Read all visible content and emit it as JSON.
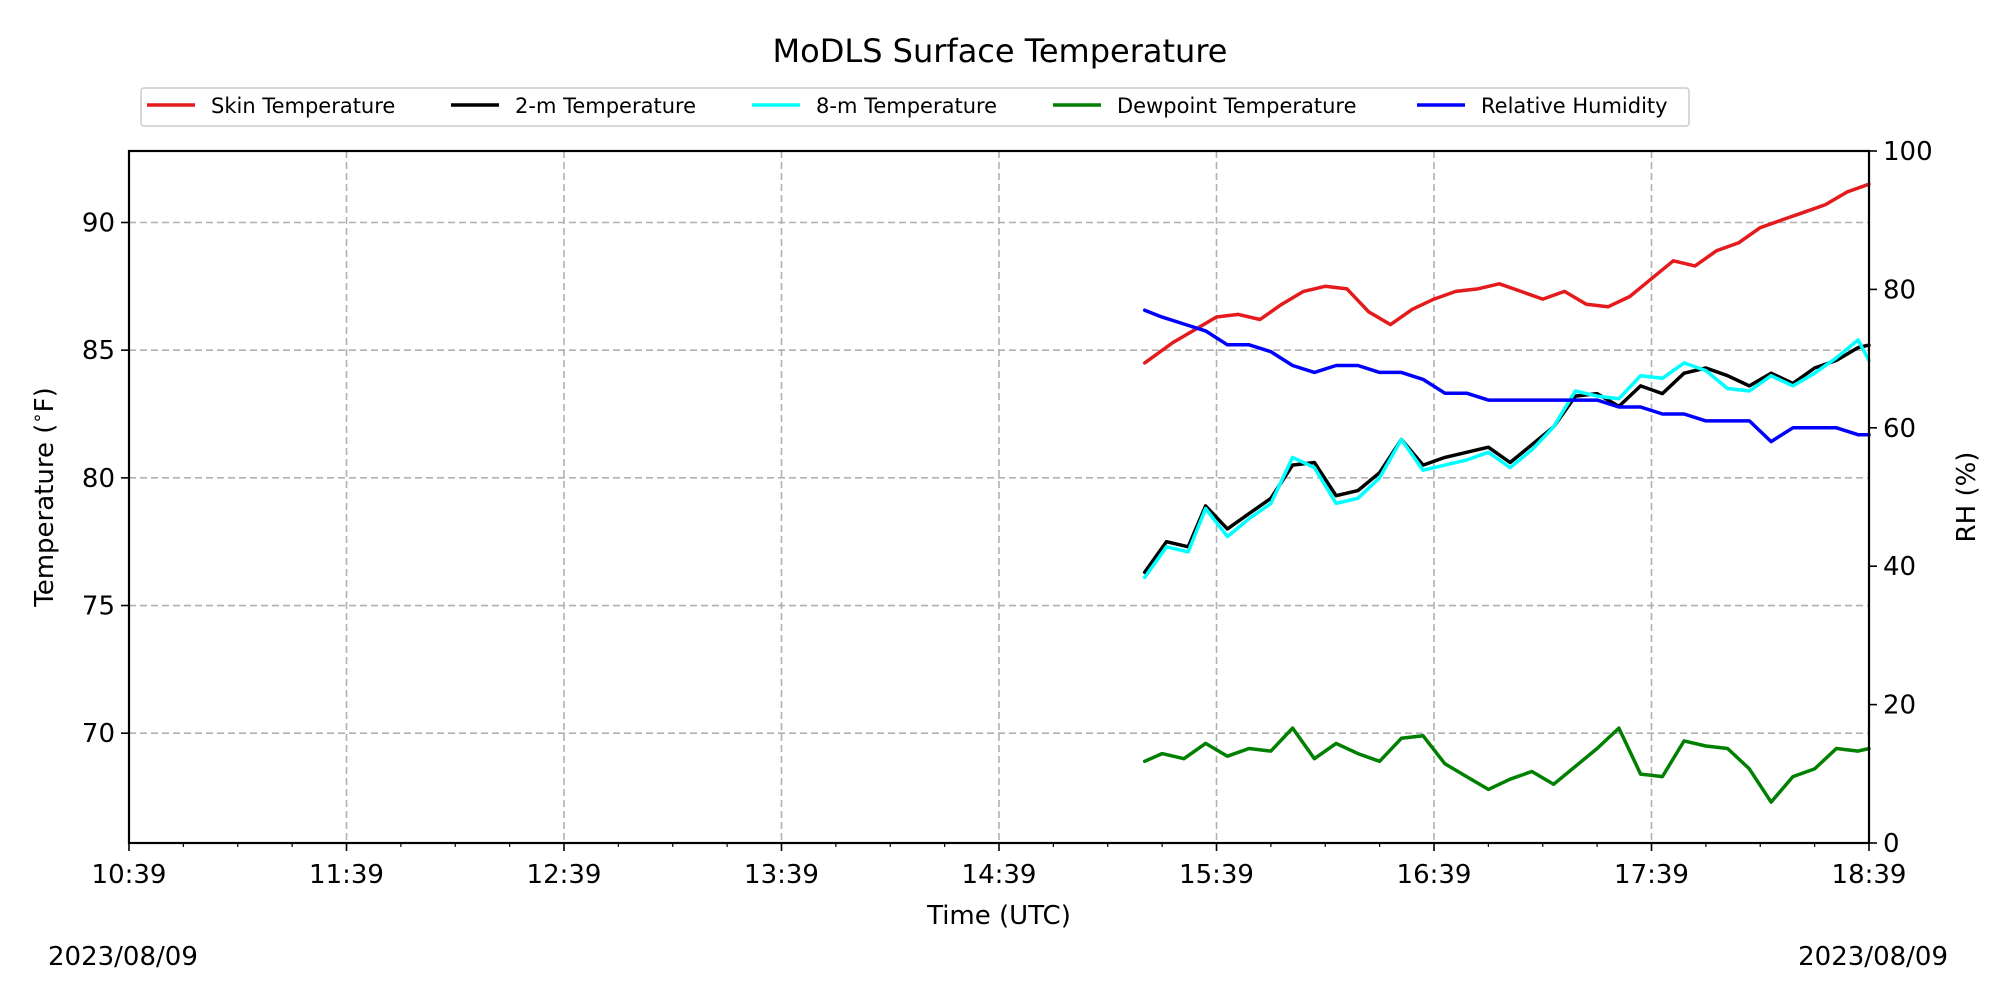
{
  "chart_data": {
    "type": "line",
    "title": "MoDLS Surface Temperature",
    "xlabel": "Time (UTC)",
    "ylabel": "Temperature ($^\\circ$F)",
    "y2label": "RH (%)",
    "x_unit": "hours UTC",
    "xlim": [
      10.65,
      18.65
    ],
    "ylim": [
      65.7,
      92.8
    ],
    "y2lim": [
      0,
      100
    ],
    "x_ticks": [
      "10:39",
      "11:39",
      "12:39",
      "13:39",
      "14:39",
      "15:39",
      "16:39",
      "17:39",
      "18:39"
    ],
    "y_ticks": [
      "70",
      "75",
      "80",
      "85",
      "90"
    ],
    "y2_ticks": [
      "0",
      "20",
      "40",
      "60",
      "80",
      "100"
    ],
    "grid": true,
    "legend_position": "top",
    "date_left": "2023/08/09",
    "date_right": "2023/08/09",
    "series": [
      {
        "name": "Skin Temperature",
        "axis": "left",
        "color": "#e41a1c",
        "x": [
          15.32,
          15.45,
          15.55,
          15.65,
          15.75,
          15.85,
          15.95,
          16.05,
          16.15,
          16.25,
          16.35,
          16.45,
          16.55,
          16.65,
          16.75,
          16.85,
          16.95,
          17.05,
          17.15,
          17.25,
          17.35,
          17.45,
          17.55,
          17.65,
          17.75,
          17.85,
          17.95,
          18.05,
          18.15,
          18.25,
          18.35,
          18.45,
          18.55,
          18.65
        ],
        "y": [
          84.5,
          85.3,
          85.8,
          86.3,
          86.4,
          86.2,
          86.8,
          87.3,
          87.5,
          87.4,
          86.5,
          86.0,
          86.6,
          87.0,
          87.3,
          87.4,
          87.6,
          87.3,
          87.0,
          87.3,
          86.8,
          86.7,
          87.1,
          87.8,
          88.5,
          88.3,
          88.9,
          89.2,
          89.8,
          90.1,
          90.4,
          90.7,
          91.2,
          91.5
        ]
      },
      {
        "name": "2-m Temperature",
        "axis": "left",
        "color": "#000000",
        "x": [
          15.32,
          15.42,
          15.52,
          15.6,
          15.7,
          15.8,
          15.9,
          16.0,
          16.1,
          16.2,
          16.3,
          16.4,
          16.5,
          16.6,
          16.7,
          16.8,
          16.9,
          17.0,
          17.1,
          17.2,
          17.3,
          17.4,
          17.5,
          17.6,
          17.7,
          17.8,
          17.9,
          18.0,
          18.1,
          18.2,
          18.3,
          18.4,
          18.5,
          18.6,
          18.65
        ],
        "y": [
          76.3,
          77.5,
          77.3,
          78.9,
          78.0,
          78.6,
          79.2,
          80.5,
          80.6,
          79.3,
          79.5,
          80.2,
          81.5,
          80.5,
          80.8,
          81.0,
          81.2,
          80.6,
          81.3,
          82.0,
          83.2,
          83.3,
          82.8,
          83.6,
          83.3,
          84.1,
          84.3,
          84.0,
          83.6,
          84.1,
          83.7,
          84.3,
          84.6,
          85.1,
          85.2
        ]
      },
      {
        "name": "8-m Temperature",
        "axis": "left",
        "color": "#00ffff",
        "x": [
          15.32,
          15.42,
          15.52,
          15.6,
          15.7,
          15.8,
          15.9,
          16.0,
          16.1,
          16.2,
          16.3,
          16.4,
          16.5,
          16.6,
          16.7,
          16.8,
          16.9,
          17.0,
          17.1,
          17.2,
          17.3,
          17.4,
          17.5,
          17.6,
          17.7,
          17.8,
          17.9,
          18.0,
          18.1,
          18.2,
          18.3,
          18.4,
          18.5,
          18.6,
          18.65
        ],
        "y": [
          76.1,
          77.3,
          77.1,
          78.8,
          77.7,
          78.4,
          79.0,
          80.8,
          80.4,
          79.0,
          79.2,
          80.0,
          81.5,
          80.3,
          80.5,
          80.7,
          81.0,
          80.4,
          81.1,
          82.0,
          83.4,
          83.2,
          83.1,
          84.0,
          83.9,
          84.5,
          84.2,
          83.5,
          83.4,
          84.0,
          83.6,
          84.1,
          84.7,
          85.4,
          84.6
        ]
      },
      {
        "name": "Dewpoint Temperature",
        "axis": "left",
        "color": "#008000",
        "x": [
          15.32,
          15.4,
          15.5,
          15.6,
          15.7,
          15.8,
          15.9,
          16.0,
          16.1,
          16.2,
          16.3,
          16.4,
          16.5,
          16.6,
          16.7,
          16.8,
          16.9,
          17.0,
          17.1,
          17.2,
          17.3,
          17.4,
          17.5,
          17.6,
          17.7,
          17.8,
          17.9,
          18.0,
          18.1,
          18.2,
          18.3,
          18.4,
          18.5,
          18.6,
          18.65
        ],
        "y": [
          68.9,
          69.2,
          69.0,
          69.6,
          69.1,
          69.4,
          69.3,
          70.2,
          69.0,
          69.6,
          69.2,
          68.9,
          69.8,
          69.9,
          68.8,
          68.3,
          67.8,
          68.2,
          68.5,
          68.0,
          68.7,
          69.4,
          70.2,
          68.4,
          68.3,
          69.7,
          69.5,
          69.4,
          68.6,
          67.3,
          68.3,
          68.6,
          69.4,
          69.3,
          69.4
        ]
      },
      {
        "name": "Relative Humidity",
        "axis": "right",
        "color": "#0000ff",
        "x": [
          15.32,
          15.4,
          15.5,
          15.6,
          15.7,
          15.8,
          15.9,
          16.0,
          16.1,
          16.2,
          16.3,
          16.4,
          16.5,
          16.6,
          16.7,
          16.8,
          16.9,
          17.0,
          17.1,
          17.2,
          17.3,
          17.4,
          17.5,
          17.6,
          17.7,
          17.8,
          17.9,
          18.0,
          18.1,
          18.2,
          18.3,
          18.4,
          18.5,
          18.6,
          18.65
        ],
        "y": [
          77,
          76,
          75,
          74,
          72,
          72,
          71,
          69,
          68,
          69,
          69,
          68,
          68,
          67,
          65,
          65,
          64,
          64,
          64,
          64,
          64,
          64,
          63,
          63,
          62,
          62,
          61,
          61,
          61,
          58,
          60,
          60,
          60,
          59,
          59
        ]
      }
    ]
  }
}
